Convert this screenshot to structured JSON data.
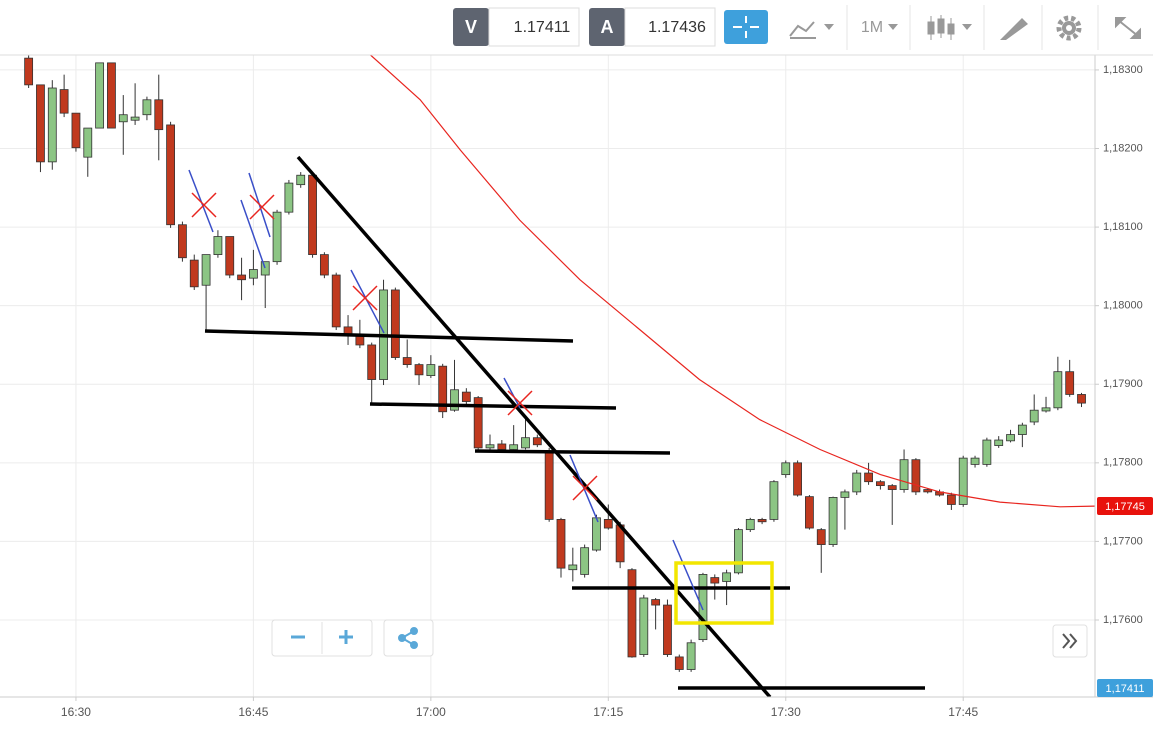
{
  "toolbar": {
    "bid_label": "V",
    "bid": "1.17411",
    "ask_label": "A",
    "ask": "1.17436",
    "timeframe": "1M"
  },
  "price_tags": [
    "1,17745",
    "1,17411"
  ],
  "chart_data": {
    "type": "candlestick",
    "up_color": "#8cc584",
    "down_color": "#c0391e",
    "grid": true,
    "xlim": [
      983.58,
      1076.14
    ],
    "ylim": [
      1.17502,
      1.18319
    ],
    "xticks": [
      {
        "value": 990,
        "label": "16:30"
      },
      {
        "value": 1005,
        "label": "16:45"
      },
      {
        "value": 1020,
        "label": "17:00"
      },
      {
        "value": 1035,
        "label": "17:15"
      },
      {
        "value": 1050,
        "label": "17:30"
      },
      {
        "value": 1065,
        "label": "17:45"
      }
    ],
    "yticks": [
      {
        "value": 1.183,
        "label": "1,18300"
      },
      {
        "value": 1.182,
        "label": "1,18200"
      },
      {
        "value": 1.181,
        "label": "1,18100"
      },
      {
        "value": 1.18,
        "label": "1,18000"
      },
      {
        "value": 1.179,
        "label": "1,17900"
      },
      {
        "value": 1.178,
        "label": "1,17800"
      },
      {
        "value": 1.177,
        "label": "1,17700"
      },
      {
        "value": 1.176,
        "label": "1,17600"
      }
    ],
    "x": [
      986,
      987,
      988,
      989,
      990,
      991,
      992,
      993,
      994,
      995,
      996,
      997,
      998,
      999,
      1000,
      1001,
      1002,
      1003,
      1004,
      1005,
      1006,
      1007,
      1008,
      1009,
      1010,
      1011,
      1012,
      1013,
      1014,
      1015,
      1016,
      1017,
      1018,
      1019,
      1020,
      1021,
      1022,
      1023,
      1024,
      1025,
      1026,
      1027,
      1028,
      1029,
      1030,
      1031,
      1032,
      1033,
      1034,
      1035,
      1036,
      1037,
      1038,
      1039,
      1040,
      1041,
      1042,
      1043,
      1044,
      1045,
      1046,
      1047,
      1048,
      1049,
      1050,
      1051,
      1052,
      1053,
      1054,
      1055,
      1056,
      1057,
      1058,
      1059,
      1060,
      1061,
      1062,
      1063,
      1064,
      1065,
      1066,
      1067,
      1068,
      1069,
      1070,
      1071,
      1072,
      1073,
      1074,
      1075
    ],
    "open": [
      1.18315,
      1.18281,
      1.18183,
      1.18275,
      1.18245,
      1.18189,
      1.18226,
      1.18309,
      1.18234,
      1.18236,
      1.18243,
      1.18262,
      1.1823,
      1.18103,
      1.18058,
      1.18026,
      1.18065,
      1.18088,
      1.18039,
      1.18035,
      1.18039,
      1.18056,
      1.18119,
      1.18154,
      1.18166,
      1.18065,
      1.18039,
      1.17973,
      1.17963,
      1.1795,
      1.17906,
      1.1802,
      1.17934,
      1.17925,
      1.17911,
      1.17923,
      1.17867,
      1.1789,
      1.17883,
      1.17819,
      1.17824,
      1.17817,
      1.17819,
      1.17832,
      1.17814,
      1.17728,
      1.17664,
      1.17658,
      1.17689,
      1.17728,
      1.17721,
      1.17664,
      1.17556,
      1.17626,
      1.17619,
      1.17553,
      1.17537,
      1.17575,
      1.17654,
      1.17649,
      1.1766,
      1.17715,
      1.17728,
      1.17728,
      1.17785,
      1.178,
      1.17757,
      1.17715,
      1.17696,
      1.17756,
      1.17763,
      1.17787,
      1.17776,
      1.17771,
      1.17766,
      1.17804,
      1.17766,
      1.17763,
      1.17759,
      1.17747,
      1.17798,
      1.17798,
      1.17822,
      1.17828,
      1.17836,
      1.17852,
      1.17866,
      1.1787,
      1.17916,
      1.17887
    ],
    "high": [
      1.18319,
      1.18281,
      1.18287,
      1.18294,
      1.18245,
      1.18226,
      1.18309,
      1.18309,
      1.18268,
      1.18283,
      1.18266,
      1.18294,
      1.18234,
      1.18107,
      1.18065,
      1.18065,
      1.18096,
      1.18088,
      1.18061,
      1.18071,
      1.18056,
      1.18122,
      1.1816,
      1.1817,
      1.1817,
      1.18068,
      1.18042,
      1.17988,
      1.17982,
      1.17953,
      1.18033,
      1.18023,
      1.17957,
      1.17927,
      1.17937,
      1.17926,
      1.17931,
      1.17895,
      1.17885,
      1.17836,
      1.17829,
      1.17848,
      1.17857,
      1.17836,
      1.17819,
      1.1773,
      1.17692,
      1.17696,
      1.17734,
      1.17747,
      1.17725,
      1.17666,
      1.17632,
      1.17628,
      1.17626,
      1.17556,
      1.17575,
      1.1766,
      1.17658,
      1.17664,
      1.17717,
      1.1773,
      1.1773,
      1.17778,
      1.17803,
      1.17803,
      1.17759,
      1.17717,
      1.17757,
      1.17766,
      1.17791,
      1.178,
      1.17778,
      1.17773,
      1.17817,
      1.17806,
      1.17768,
      1.17766,
      1.17762,
      1.17809,
      1.17809,
      1.17832,
      1.17834,
      1.17842,
      1.17851,
      1.17887,
      1.17884,
      1.17935,
      1.17931,
      1.17889
    ],
    "low": [
      1.18277,
      1.1817,
      1.18173,
      1.1824,
      1.18196,
      1.18164,
      1.18226,
      1.18226,
      1.18192,
      1.1823,
      1.18236,
      1.18185,
      1.18099,
      1.18056,
      1.1802,
      1.17969,
      1.18061,
      1.18035,
      1.18007,
      1.18026,
      1.17997,
      1.18052,
      1.18116,
      1.1815,
      1.18061,
      1.18035,
      1.17969,
      1.1795,
      1.17946,
      1.17874,
      1.17899,
      1.17931,
      1.17921,
      1.17899,
      1.17908,
      1.17857,
      1.17865,
      1.17874,
      1.17814,
      1.17814,
      1.17814,
      1.17814,
      1.17817,
      1.1782,
      1.17725,
      1.17654,
      1.17649,
      1.17654,
      1.17687,
      1.17715,
      1.17666,
      1.17552,
      1.17553,
      1.17588,
      1.17553,
      1.17534,
      1.17534,
      1.17572,
      1.17626,
      1.17619,
      1.17658,
      1.17712,
      1.17722,
      1.17725,
      1.17781,
      1.17757,
      1.17715,
      1.1766,
      1.17693,
      1.17715,
      1.17759,
      1.17772,
      1.17766,
      1.17721,
      1.17762,
      1.17759,
      1.17761,
      1.17757,
      1.1774,
      1.17744,
      1.17794,
      1.17795,
      1.17819,
      1.17826,
      1.1782,
      1.17848,
      1.17864,
      1.17867,
      1.17884,
      1.17871
    ],
    "close": [
      1.18281,
      1.18183,
      1.18277,
      1.18245,
      1.18201,
      1.18226,
      1.18309,
      1.18226,
      1.18243,
      1.1824,
      1.18262,
      1.18224,
      1.18103,
      1.18061,
      1.18024,
      1.18065,
      1.18088,
      1.18039,
      1.18033,
      1.18046,
      1.18056,
      1.18119,
      1.18156,
      1.18166,
      1.18065,
      1.18039,
      1.17973,
      1.17963,
      1.1795,
      1.17906,
      1.1802,
      1.17934,
      1.17925,
      1.17912,
      1.17925,
      1.17865,
      1.17893,
      1.17878,
      1.17819,
      1.17823,
      1.17817,
      1.17823,
      1.17832,
      1.17823,
      1.17728,
      1.17666,
      1.1767,
      1.17692,
      1.1773,
      1.17717,
      1.17674,
      1.17553,
      1.17628,
      1.17619,
      1.17556,
      1.17537,
      1.17571,
      1.17658,
      1.17647,
      1.1766,
      1.17715,
      1.17728,
      1.17725,
      1.17776,
      1.178,
      1.17759,
      1.17717,
      1.17696,
      1.17756,
      1.17763,
      1.17787,
      1.17776,
      1.17771,
      1.17766,
      1.17804,
      1.17763,
      1.17763,
      1.17759,
      1.17747,
      1.17806,
      1.17806,
      1.17829,
      1.17829,
      1.17836,
      1.17848,
      1.17867,
      1.1787,
      1.17916,
      1.17887,
      1.17876
    ],
    "moving_average": {
      "color": "#e8251f",
      "x": [
        1014.9,
        1019.1,
        1022.5,
        1027.5,
        1032.6,
        1037.7,
        1042.7,
        1047.8,
        1052.9,
        1058.0,
        1063.0,
        1068.1,
        1073.2,
        1076.1
      ],
      "values": [
        1.18319,
        1.18262,
        1.18198,
        1.18109,
        1.18033,
        1.17969,
        1.17906,
        1.17855,
        1.17817,
        1.17785,
        1.17763,
        1.1775,
        1.17744,
        1.17745
      ]
    }
  }
}
